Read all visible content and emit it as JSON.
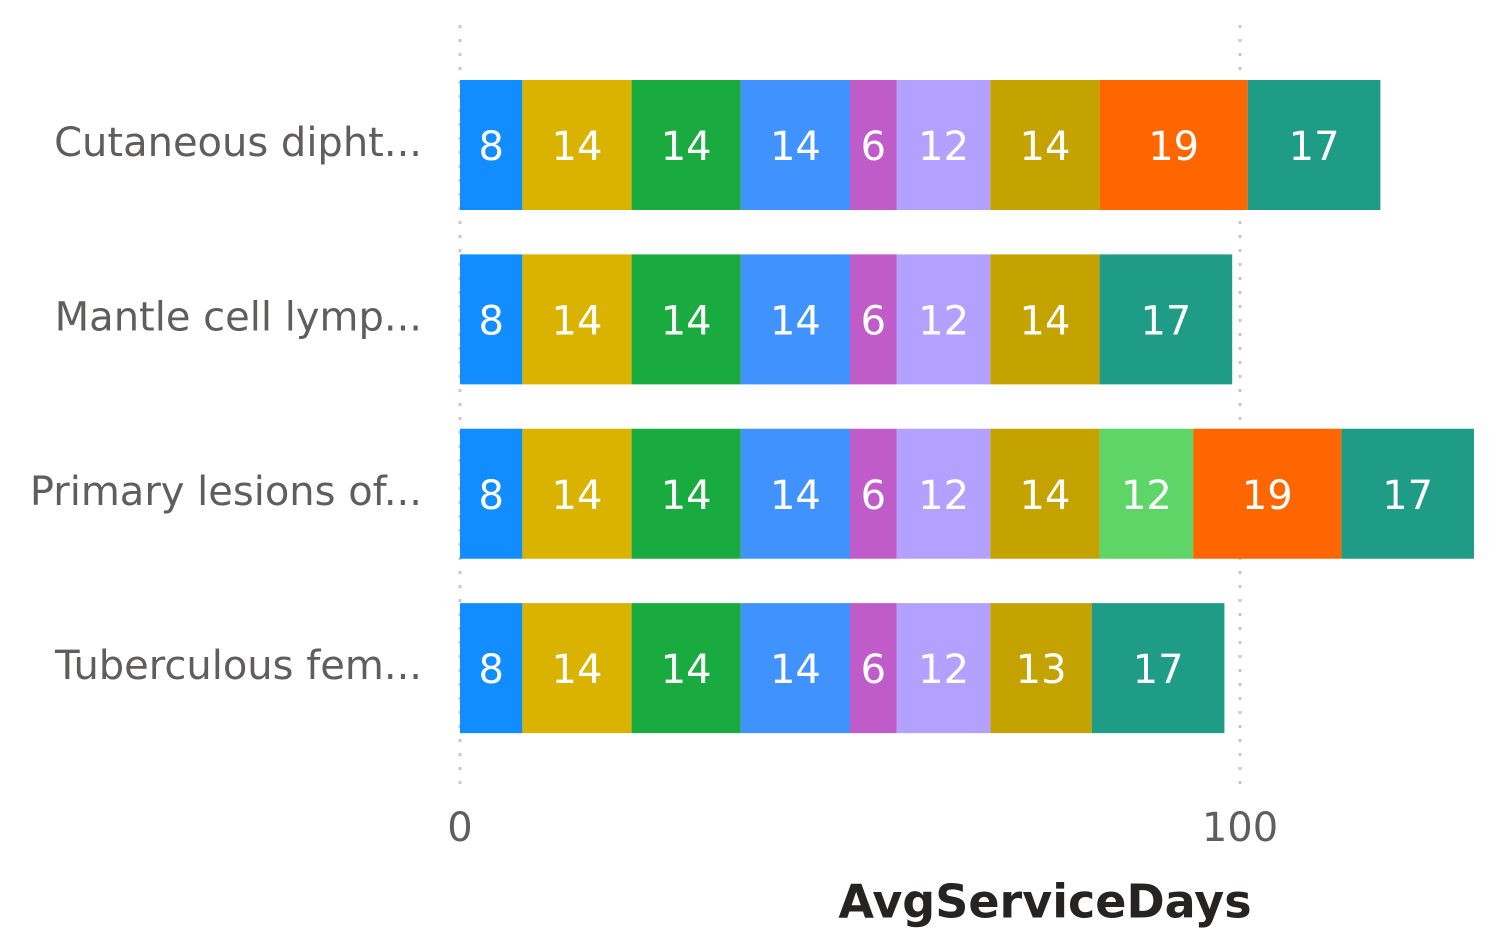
{
  "chart_data": {
    "type": "stacked_barh",
    "x_label": "AvgServiceDays",
    "categories": [
      "Cutaneous dipht...",
      "Mantle cell lymp...",
      "Primary lesions of...",
      "Tuberculous fem..."
    ],
    "series": [
      {
        "color": "#118DFF",
        "values": [
          8,
          8,
          8,
          8
        ]
      },
      {
        "color": "#D9B300",
        "values": [
          14,
          14,
          14,
          14
        ]
      },
      {
        "color": "#1AAB40",
        "values": [
          14,
          14,
          14,
          14
        ]
      },
      {
        "color": "#4092FF",
        "values": [
          14,
          14,
          14,
          14
        ]
      },
      {
        "color": "#C05BCA",
        "values": [
          6,
          6,
          6,
          6
        ]
      },
      {
        "color": "#B3A1FF",
        "values": [
          12,
          12,
          12,
          12
        ]
      },
      {
        "color": "#C4A200",
        "values": [
          14,
          14,
          14,
          13
        ]
      },
      {
        "color": "#5DD667",
        "values": [
          null,
          null,
          12,
          null
        ]
      },
      {
        "color": "#FF6600",
        "values": [
          19,
          null,
          19,
          null
        ]
      },
      {
        "color": "#1F9C86",
        "values": [
          17,
          17,
          17,
          17
        ]
      }
    ],
    "xlim": [
      0,
      130
    ],
    "xticks": [
      0,
      100
    ],
    "grid": true
  }
}
